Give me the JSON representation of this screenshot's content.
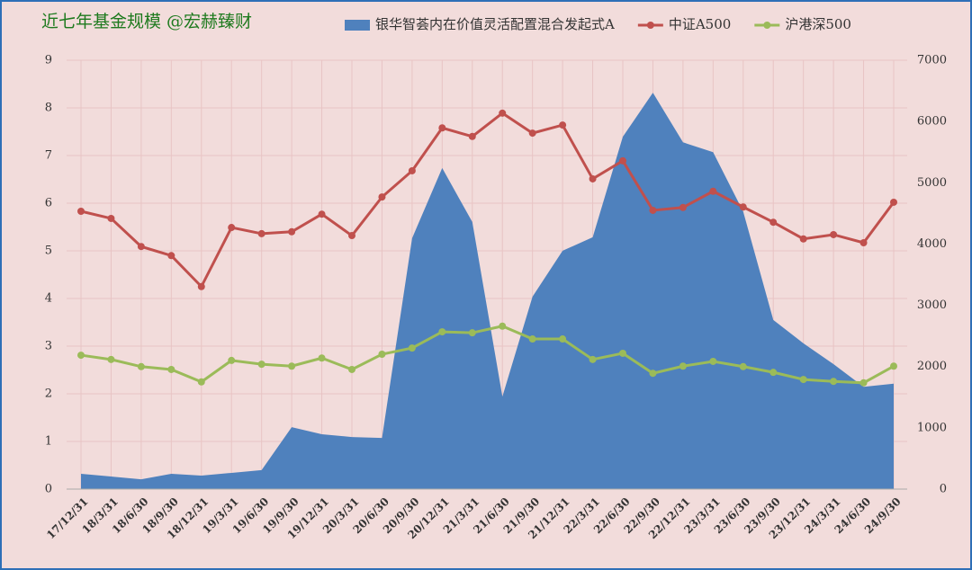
{
  "chart_data": {
    "type": "area-line",
    "title": "近七年基金规模 @宏赫臻财",
    "categories": [
      "17/12/31",
      "18/3/31",
      "18/6/30",
      "18/9/30",
      "18/12/31",
      "19/3/31",
      "19/6/30",
      "19/9/30",
      "19/12/31",
      "20/3/31",
      "20/6/30",
      "20/9/30",
      "20/12/31",
      "21/3/31",
      "21/6/30",
      "21/9/30",
      "21/12/31",
      "22/3/31",
      "22/6/30",
      "22/9/30",
      "22/12/31",
      "23/3/31",
      "23/6/30",
      "23/9/30",
      "23/12/31",
      "24/3/31",
      "24/6/30",
      "24/9/30"
    ],
    "series": [
      {
        "name": "银华智荟内在价值灵活配置混合发起式A",
        "type": "area",
        "axis": "y2",
        "color": "#4f81bd",
        "values": [
          250,
          205,
          160,
          250,
          220,
          265,
          310,
          1010,
          895,
          850,
          835,
          4095,
          5240,
          4360,
          1510,
          3140,
          3890,
          4110,
          5750,
          6470,
          5660,
          5500,
          4530,
          2760,
          2380,
          2040,
          1670,
          1720
        ]
      },
      {
        "name": "中证A500",
        "type": "line",
        "color": "#c0504d",
        "values": [
          5.83,
          5.68,
          5.09,
          4.9,
          4.25,
          5.49,
          5.36,
          5.4,
          5.77,
          5.32,
          6.13,
          6.68,
          7.58,
          7.4,
          7.89,
          7.47,
          7.64,
          6.51,
          6.89,
          5.85,
          5.91,
          6.25,
          5.92,
          5.6,
          5.25,
          5.34,
          5.17,
          6.02
        ]
      },
      {
        "name": "沪港深500",
        "type": "line",
        "color": "#9bbb59",
        "values": [
          2.81,
          2.72,
          2.57,
          2.51,
          2.25,
          2.7,
          2.62,
          2.58,
          2.75,
          2.51,
          2.83,
          2.96,
          3.3,
          3.28,
          3.42,
          3.15,
          3.15,
          2.72,
          2.85,
          2.43,
          2.58,
          2.68,
          2.57,
          2.45,
          2.3,
          2.26,
          2.23,
          2.58
        ]
      }
    ],
    "ylim": [
      0,
      9
    ],
    "yticks": [
      0,
      1,
      2,
      3,
      4,
      5,
      6,
      7,
      8,
      9
    ],
    "y2lim": [
      0,
      7000
    ],
    "y2ticks": [
      0,
      1000,
      2000,
      3000,
      4000,
      5000,
      6000,
      7000
    ],
    "grid": true
  }
}
